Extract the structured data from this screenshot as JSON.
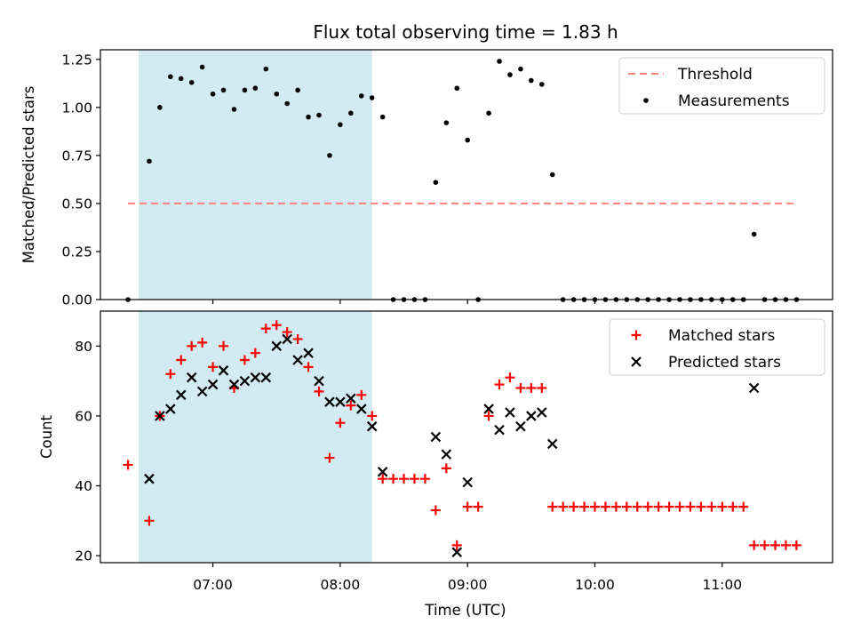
{
  "title": "Flux total observing time = 1.83 h",
  "xlabel": "Time (UTC)",
  "x_ticks": [
    "07:00",
    "08:00",
    "09:00",
    "10:00",
    "11:00"
  ],
  "colors": {
    "threshold": "#ff7f7f",
    "measurements": "#000000",
    "matched": "#ff0000",
    "predicted": "#000000",
    "shade": "#add8e6"
  },
  "chart_data": [
    {
      "type": "scatter",
      "ylabel": "Matched/Predicted stars",
      "xlim": [
        "06:07",
        "11:52"
      ],
      "ylim": [
        0,
        1.3
      ],
      "y_ticks": [
        "0.00",
        "0.25",
        "0.50",
        "0.75",
        "1.00",
        "1.25"
      ],
      "shaded_span": [
        "06:25",
        "08:15"
      ],
      "legend_position": "top-right",
      "legend": [
        "Threshold",
        "Measurements"
      ],
      "threshold": {
        "name": "Threshold",
        "y": 0.5,
        "x_range": [
          "06:20",
          "11:35"
        ]
      },
      "series": [
        {
          "name": "Measurements",
          "marker": "dot",
          "points": [
            [
              "06:20",
              0.0
            ],
            [
              "06:30",
              0.72
            ],
            [
              "06:35",
              1.0
            ],
            [
              "06:40",
              1.16
            ],
            [
              "06:45",
              1.15
            ],
            [
              "06:50",
              1.13
            ],
            [
              "06:55",
              1.21
            ],
            [
              "07:00",
              1.07
            ],
            [
              "07:05",
              1.09
            ],
            [
              "07:10",
              0.99
            ],
            [
              "07:15",
              1.09
            ],
            [
              "07:20",
              1.1
            ],
            [
              "07:25",
              1.2
            ],
            [
              "07:30",
              1.07
            ],
            [
              "07:35",
              1.02
            ],
            [
              "07:40",
              1.09
            ],
            [
              "07:45",
              0.95
            ],
            [
              "07:50",
              0.96
            ],
            [
              "07:55",
              0.75
            ],
            [
              "08:00",
              0.91
            ],
            [
              "08:05",
              0.97
            ],
            [
              "08:10",
              1.06
            ],
            [
              "08:15",
              1.05
            ],
            [
              "08:20",
              0.95
            ],
            [
              "08:25",
              0.0
            ],
            [
              "08:30",
              0.0
            ],
            [
              "08:35",
              0.0
            ],
            [
              "08:40",
              0.0
            ],
            [
              "08:45",
              0.61
            ],
            [
              "08:50",
              0.92
            ],
            [
              "08:55",
              1.1
            ],
            [
              "09:00",
              0.83
            ],
            [
              "09:05",
              0.0
            ],
            [
              "09:10",
              0.97
            ],
            [
              "09:15",
              1.24
            ],
            [
              "09:20",
              1.17
            ],
            [
              "09:25",
              1.2
            ],
            [
              "09:30",
              1.14
            ],
            [
              "09:35",
              1.12
            ],
            [
              "09:40",
              0.65
            ],
            [
              "09:45",
              0.0
            ],
            [
              "09:50",
              0.0
            ],
            [
              "09:55",
              0.0
            ],
            [
              "10:00",
              0.0
            ],
            [
              "10:05",
              0.0
            ],
            [
              "10:10",
              0.0
            ],
            [
              "10:15",
              0.0
            ],
            [
              "10:20",
              0.0
            ],
            [
              "10:25",
              0.0
            ],
            [
              "10:30",
              0.0
            ],
            [
              "10:35",
              0.0
            ],
            [
              "10:40",
              0.0
            ],
            [
              "10:45",
              0.0
            ],
            [
              "10:50",
              0.0
            ],
            [
              "10:55",
              0.0
            ],
            [
              "11:00",
              0.0
            ],
            [
              "11:05",
              0.0
            ],
            [
              "11:10",
              0.0
            ],
            [
              "11:15",
              0.34
            ],
            [
              "11:20",
              0.0
            ],
            [
              "11:25",
              0.0
            ],
            [
              "11:30",
              0.0
            ],
            [
              "11:35",
              0.0
            ]
          ]
        }
      ]
    },
    {
      "type": "scatter",
      "ylabel": "Count",
      "xlim": [
        "06:07",
        "11:52"
      ],
      "ylim": [
        18,
        90
      ],
      "y_ticks": [
        "20",
        "40",
        "60",
        "80"
      ],
      "shaded_span": [
        "06:25",
        "08:15"
      ],
      "legend_position": "top-right",
      "legend": [
        "Matched stars",
        "Predicted stars"
      ],
      "series": [
        {
          "name": "Matched stars",
          "marker": "plus",
          "points": [
            [
              "06:20",
              46
            ],
            [
              "06:30",
              30
            ],
            [
              "06:35",
              60
            ],
            [
              "06:40",
              72
            ],
            [
              "06:45",
              76
            ],
            [
              "06:50",
              80
            ],
            [
              "06:55",
              81
            ],
            [
              "07:00",
              74
            ],
            [
              "07:05",
              80
            ],
            [
              "07:10",
              68
            ],
            [
              "07:15",
              76
            ],
            [
              "07:20",
              78
            ],
            [
              "07:25",
              85
            ],
            [
              "07:30",
              86
            ],
            [
              "07:35",
              84
            ],
            [
              "07:40",
              82
            ],
            [
              "07:45",
              74
            ],
            [
              "07:50",
              67
            ],
            [
              "07:55",
              48
            ],
            [
              "08:00",
              58
            ],
            [
              "08:05",
              63
            ],
            [
              "08:10",
              66
            ],
            [
              "08:15",
              60
            ],
            [
              "08:20",
              42
            ],
            [
              "08:25",
              42
            ],
            [
              "08:30",
              42
            ],
            [
              "08:35",
              42
            ],
            [
              "08:40",
              42
            ],
            [
              "08:45",
              33
            ],
            [
              "08:50",
              45
            ],
            [
              "08:55",
              23
            ],
            [
              "09:00",
              34
            ],
            [
              "09:05",
              34
            ],
            [
              "09:10",
              60
            ],
            [
              "09:15",
              69
            ],
            [
              "09:20",
              71
            ],
            [
              "09:25",
              68
            ],
            [
              "09:30",
              68
            ],
            [
              "09:35",
              68
            ],
            [
              "09:40",
              34
            ],
            [
              "09:45",
              34
            ],
            [
              "09:50",
              34
            ],
            [
              "09:55",
              34
            ],
            [
              "10:00",
              34
            ],
            [
              "10:05",
              34
            ],
            [
              "10:10",
              34
            ],
            [
              "10:15",
              34
            ],
            [
              "10:20",
              34
            ],
            [
              "10:25",
              34
            ],
            [
              "10:30",
              34
            ],
            [
              "10:35",
              34
            ],
            [
              "10:40",
              34
            ],
            [
              "10:45",
              34
            ],
            [
              "10:50",
              34
            ],
            [
              "10:55",
              34
            ],
            [
              "11:00",
              34
            ],
            [
              "11:05",
              34
            ],
            [
              "11:10",
              34
            ],
            [
              "11:15",
              23
            ],
            [
              "11:20",
              23
            ],
            [
              "11:25",
              23
            ],
            [
              "11:30",
              23
            ],
            [
              "11:35",
              23
            ]
          ]
        },
        {
          "name": "Predicted stars",
          "marker": "cross",
          "points": [
            [
              "06:30",
              42
            ],
            [
              "06:35",
              60
            ],
            [
              "06:40",
              62
            ],
            [
              "06:45",
              66
            ],
            [
              "06:50",
              71
            ],
            [
              "06:55",
              67
            ],
            [
              "07:00",
              69
            ],
            [
              "07:05",
              73
            ],
            [
              "07:10",
              69
            ],
            [
              "07:15",
              70
            ],
            [
              "07:20",
              71
            ],
            [
              "07:25",
              71
            ],
            [
              "07:30",
              80
            ],
            [
              "07:35",
              82
            ],
            [
              "07:40",
              76
            ],
            [
              "07:45",
              78
            ],
            [
              "07:50",
              70
            ],
            [
              "07:55",
              64
            ],
            [
              "08:00",
              64
            ],
            [
              "08:05",
              65
            ],
            [
              "08:10",
              62
            ],
            [
              "08:15",
              57
            ],
            [
              "08:20",
              44
            ],
            [
              "08:45",
              54
            ],
            [
              "08:50",
              49
            ],
            [
              "08:55",
              21
            ],
            [
              "09:00",
              41
            ],
            [
              "09:10",
              62
            ],
            [
              "09:15",
              56
            ],
            [
              "09:20",
              61
            ],
            [
              "09:25",
              57
            ],
            [
              "09:30",
              60
            ],
            [
              "09:35",
              61
            ],
            [
              "09:40",
              52
            ],
            [
              "11:15",
              68
            ]
          ]
        }
      ]
    }
  ]
}
